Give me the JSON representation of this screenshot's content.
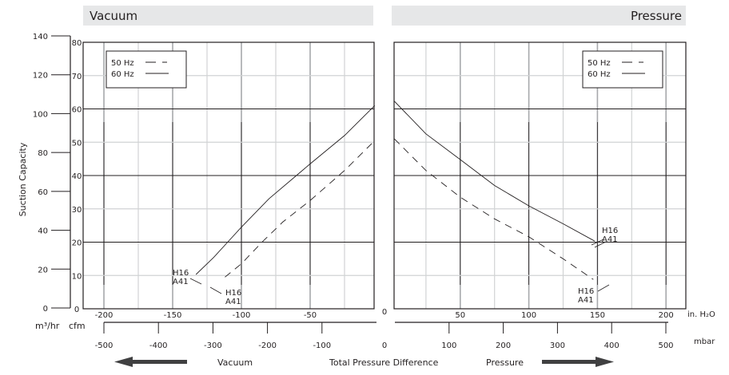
{
  "chart_data": [
    {
      "type": "line",
      "title": "Vacuum",
      "xlabel": "Total Pressure Difference",
      "ylabel": "Suction Capacity",
      "x_unit": "in. H2O",
      "y_unit": "cfm",
      "secondary_y_unit": "m3/hr",
      "xlim": [
        -215,
        0
      ],
      "ylim": [
        0,
        80
      ],
      "x_ticks": [
        -200,
        -150,
        -100,
        -50
      ],
      "y_ticks": [
        0,
        10,
        20,
        30,
        40,
        50,
        60,
        70,
        80
      ],
      "secondary_y_ticks": [
        0,
        20,
        40,
        60,
        80,
        100,
        120,
        140
      ],
      "grid": true,
      "legend": {
        "position": "top-left",
        "entries": [
          "50 Hz",
          "60 Hz"
        ]
      },
      "series": [
        {
          "name": "60 Hz",
          "style": "solid",
          "x": [
            -133,
            -120,
            -110,
            -100,
            -80,
            -60,
            -50,
            -25,
            -3
          ],
          "y": [
            10.3,
            15.5,
            20,
            24.5,
            33,
            40,
            43.5,
            52,
            61
          ]
        },
        {
          "name": "50 Hz",
          "style": "dashed",
          "x": [
            -112,
            -100,
            -85,
            -70,
            -50,
            -25,
            -3
          ],
          "y": [
            9.5,
            13.5,
            20,
            26,
            32.5,
            41.5,
            50.5
          ]
        }
      ],
      "annotations": [
        {
          "text": [
            "H16",
            "A41"
          ],
          "series": "60 Hz"
        },
        {
          "text": [
            "H16",
            "A41"
          ],
          "series": "50 Hz"
        }
      ]
    },
    {
      "type": "line",
      "title": "Pressure",
      "xlabel": "Total Pressure Difference",
      "ylabel": "Suction Capacity",
      "x_unit": "in. H2O",
      "y_unit": "cfm",
      "xlim": [
        0,
        215
      ],
      "ylim": [
        0,
        80
      ],
      "x_ticks": [
        0,
        50,
        100,
        150,
        200
      ],
      "grid": true,
      "legend": {
        "position": "top-right",
        "entries": [
          "50 Hz",
          "60 Hz"
        ]
      },
      "series": [
        {
          "name": "60 Hz",
          "style": "solid",
          "x": [
            2,
            25,
            50,
            75,
            100,
            125,
            148
          ],
          "y": [
            62.3,
            52.5,
            44.8,
            37,
            30.9,
            25.5,
            20.3
          ]
        },
        {
          "name": "50 Hz",
          "style": "dashed",
          "x": [
            2,
            25,
            50,
            75,
            100,
            125,
            147
          ],
          "y": [
            51,
            41.5,
            33.5,
            27,
            21.6,
            15,
            8.8
          ]
        }
      ],
      "annotations": [
        {
          "text": [
            "H16",
            "A41"
          ],
          "series": "60 Hz"
        },
        {
          "text": [
            "H16",
            "A41"
          ],
          "series": "50 Hz"
        }
      ]
    }
  ],
  "labels": {
    "vacuum_header": "Vacuum",
    "pressure_header": "Pressure",
    "y_title": "Suction Capacity",
    "unit_m3": "m³/hr",
    "unit_cfm": "cfm",
    "unit_inh2o": "in. H₂O",
    "unit_mbar": "mbar",
    "zero_inh2o": "0",
    "zero_mbar": "0",
    "bottom_vacuum": "Vacuum",
    "bottom_center": "Total Pressure Difference",
    "bottom_pressure": "Pressure",
    "legend_50": "50 Hz",
    "legend_60": "60 Hz",
    "h16": "H16",
    "a41": "A41"
  },
  "mbar_ticks_left": [
    -500,
    -400,
    -300,
    -200,
    -100
  ],
  "mbar_ticks_right": [
    100,
    200,
    300,
    400,
    500
  ],
  "colors": {
    "header_bg": "#e6e7e8",
    "grid_light": "#d1d3d4",
    "grid_mid": "#a7a9ac",
    "ink": "#231f20"
  }
}
